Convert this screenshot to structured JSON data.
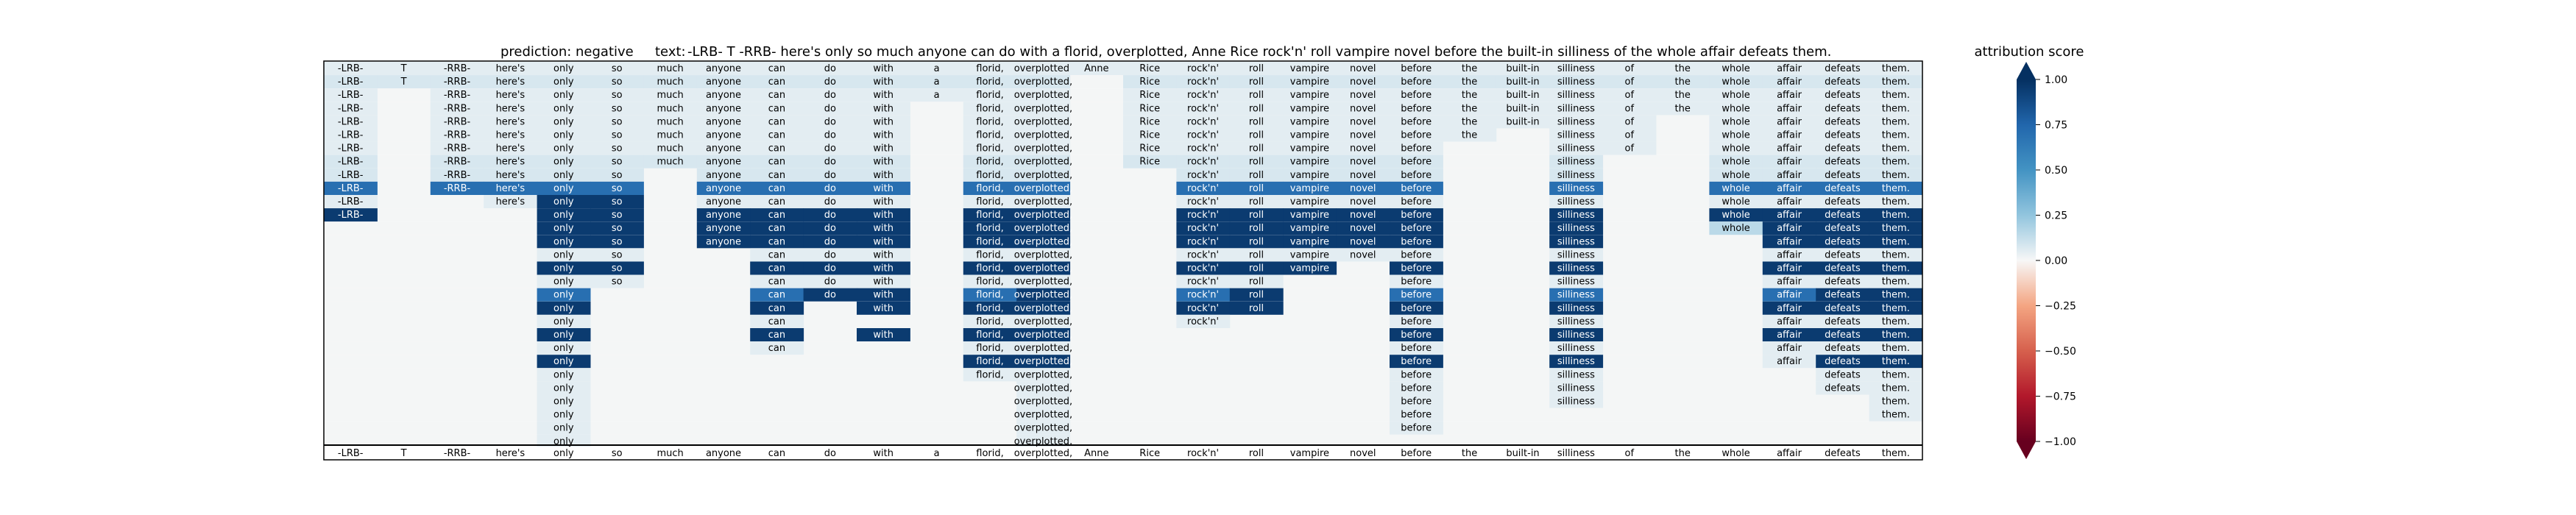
{
  "chart_data": {
    "type": "heatmap",
    "prediction_label": "prediction:",
    "prediction": "negative",
    "text_label": "text:",
    "text": "-LRB- T -RRB- here's only so much anyone can do with a florid, overplotted, Anne Rice rock'n' roll vampire novel before the built-in silliness of the whole affair defeats them.",
    "tokens": [
      "-LRB-",
      "T",
      "-RRB-",
      "here's",
      "only",
      "so",
      "much",
      "anyone",
      "can",
      "do",
      "with",
      "a",
      "florid,",
      "overplotted,",
      "Anne",
      "Rice",
      "rock'n'",
      "roll",
      "vampire",
      "novel",
      "before",
      "the",
      "built-in",
      "silliness",
      "of",
      "the",
      "whole",
      "affair",
      "defeats",
      "them."
    ],
    "colorbar": {
      "title": "attribution score",
      "range": [
        -1.0,
        1.0
      ],
      "ticks": [
        "1.00",
        "0.75",
        "0.50",
        "0.25",
        "0.00",
        "−0.25",
        "−0.50",
        "−0.75",
        "−1.00"
      ],
      "tick_values": [
        1.0,
        0.75,
        0.5,
        0.25,
        0.0,
        -0.25,
        -0.5,
        -0.75,
        -1.0
      ]
    },
    "rows": [
      [
        0.05,
        0.05,
        0.05,
        0.05,
        0.05,
        0.05,
        0.05,
        0.05,
        0.05,
        0.05,
        0.05,
        0.05,
        0.05,
        0.05,
        0.05,
        0.05,
        0.05,
        0.05,
        0.05,
        0.05,
        0.05,
        0.05,
        0.05,
        0.05,
        0.05,
        0.05,
        0.05,
        0.05,
        0.05,
        0.05
      ],
      [
        0.08,
        0.08,
        0.08,
        0.08,
        0.08,
        0.08,
        0.08,
        0.08,
        0.08,
        0.08,
        0.08,
        0.08,
        0.08,
        0.08,
        null,
        0.08,
        0.08,
        0.08,
        0.08,
        0.08,
        0.08,
        0.08,
        0.08,
        0.08,
        0.08,
        0.08,
        0.08,
        0.08,
        0.08,
        0.08
      ],
      [
        0.05,
        null,
        0.05,
        0.05,
        0.05,
        0.05,
        0.05,
        0.05,
        0.05,
        0.05,
        0.05,
        0.05,
        0.05,
        0.05,
        null,
        0.05,
        0.05,
        0.05,
        0.05,
        0.05,
        0.05,
        0.05,
        0.05,
        0.05,
        0.05,
        0.05,
        0.05,
        0.05,
        0.05,
        0.05
      ],
      [
        0.05,
        null,
        0.05,
        0.05,
        0.05,
        0.05,
        0.05,
        0.05,
        0.05,
        0.05,
        0.05,
        null,
        0.05,
        0.05,
        null,
        0.05,
        0.05,
        0.05,
        0.05,
        0.05,
        0.05,
        0.05,
        0.05,
        0.05,
        0.05,
        0.05,
        0.05,
        0.05,
        0.05,
        0.05
      ],
      [
        0.05,
        null,
        0.05,
        0.05,
        0.05,
        0.05,
        0.05,
        0.05,
        0.05,
        0.05,
        0.05,
        null,
        0.05,
        0.05,
        null,
        0.05,
        0.05,
        0.05,
        0.05,
        0.05,
        0.05,
        0.05,
        0.05,
        0.05,
        0.05,
        null,
        0.05,
        0.05,
        0.05,
        0.05
      ],
      [
        0.05,
        null,
        0.05,
        0.05,
        0.05,
        0.05,
        0.05,
        0.05,
        0.05,
        0.05,
        0.05,
        null,
        0.05,
        0.05,
        null,
        0.05,
        0.05,
        0.05,
        0.05,
        0.05,
        0.05,
        0.05,
        null,
        0.05,
        0.05,
        null,
        0.05,
        0.05,
        0.05,
        0.05
      ],
      [
        0.05,
        null,
        0.05,
        0.05,
        0.05,
        0.05,
        0.05,
        0.05,
        0.05,
        0.05,
        0.05,
        null,
        0.05,
        0.05,
        null,
        0.05,
        0.05,
        0.05,
        0.05,
        0.05,
        0.05,
        null,
        null,
        0.05,
        0.05,
        null,
        0.05,
        0.05,
        0.05,
        0.05
      ],
      [
        0.08,
        null,
        0.08,
        0.08,
        0.08,
        0.08,
        0.08,
        0.08,
        0.08,
        0.08,
        0.08,
        null,
        0.08,
        0.08,
        null,
        0.08,
        0.08,
        0.08,
        0.08,
        0.08,
        0.08,
        null,
        null,
        0.08,
        null,
        null,
        0.08,
        0.08,
        0.08,
        0.08
      ],
      [
        0.08,
        null,
        0.08,
        0.08,
        0.08,
        0.08,
        null,
        0.08,
        0.08,
        0.08,
        0.08,
        null,
        0.08,
        0.08,
        null,
        null,
        0.08,
        0.08,
        0.08,
        0.08,
        0.08,
        null,
        null,
        0.08,
        null,
        null,
        0.08,
        0.08,
        0.08,
        0.08
      ],
      [
        0.7,
        null,
        0.7,
        0.7,
        0.7,
        0.7,
        null,
        0.7,
        0.7,
        0.7,
        0.7,
        null,
        0.7,
        0.7,
        null,
        null,
        0.7,
        0.7,
        0.7,
        0.7,
        0.7,
        null,
        null,
        0.7,
        null,
        null,
        0.7,
        0.7,
        0.7,
        0.7
      ],
      [
        0.05,
        null,
        null,
        0.05,
        0.95,
        0.95,
        null,
        0.05,
        0.05,
        0.05,
        0.05,
        null,
        0.05,
        0.05,
        null,
        null,
        0.05,
        0.05,
        0.05,
        0.05,
        0.05,
        null,
        null,
        0.05,
        null,
        null,
        0.05,
        0.05,
        0.05,
        0.05
      ],
      [
        0.95,
        null,
        null,
        null,
        0.95,
        0.95,
        null,
        0.95,
        0.95,
        0.95,
        0.95,
        null,
        0.95,
        0.95,
        null,
        null,
        0.95,
        0.95,
        0.95,
        0.95,
        0.95,
        null,
        null,
        0.95,
        null,
        null,
        0.95,
        0.95,
        0.95,
        0.95
      ],
      [
        null,
        null,
        null,
        null,
        0.95,
        0.95,
        null,
        0.95,
        0.95,
        0.95,
        0.95,
        null,
        0.95,
        0.95,
        null,
        null,
        0.95,
        0.95,
        0.95,
        0.95,
        0.95,
        null,
        null,
        0.95,
        null,
        null,
        0.15,
        0.95,
        0.95,
        0.95
      ],
      [
        null,
        null,
        null,
        null,
        0.95,
        0.95,
        null,
        0.95,
        0.95,
        0.95,
        0.95,
        null,
        0.95,
        0.95,
        null,
        null,
        0.95,
        0.95,
        0.95,
        0.95,
        0.95,
        null,
        null,
        0.95,
        null,
        null,
        null,
        0.95,
        0.95,
        0.95
      ],
      [
        null,
        null,
        null,
        null,
        0.05,
        0.05,
        null,
        null,
        0.05,
        0.05,
        0.05,
        null,
        0.05,
        0.05,
        null,
        null,
        0.05,
        0.05,
        0.05,
        0.05,
        0.05,
        null,
        null,
        0.05,
        null,
        null,
        null,
        0.05,
        0.05,
        0.05
      ],
      [
        null,
        null,
        null,
        null,
        0.95,
        0.95,
        null,
        null,
        0.95,
        0.95,
        0.95,
        null,
        0.95,
        0.95,
        null,
        null,
        0.95,
        0.95,
        0.95,
        null,
        0.95,
        null,
        null,
        0.95,
        null,
        null,
        null,
        0.95,
        0.95,
        0.95
      ],
      [
        null,
        null,
        null,
        null,
        0.05,
        0.05,
        null,
        null,
        0.05,
        0.05,
        0.05,
        null,
        0.05,
        0.05,
        null,
        null,
        0.05,
        0.05,
        null,
        null,
        0.05,
        null,
        null,
        0.05,
        null,
        null,
        null,
        0.05,
        0.05,
        0.05
      ],
      [
        null,
        null,
        null,
        null,
        0.7,
        null,
        null,
        null,
        0.7,
        0.95,
        0.95,
        null,
        0.7,
        0.95,
        null,
        null,
        0.7,
        0.95,
        null,
        null,
        0.7,
        null,
        null,
        0.7,
        null,
        null,
        null,
        0.7,
        0.95,
        0.95
      ],
      [
        null,
        null,
        null,
        null,
        0.95,
        null,
        null,
        null,
        0.95,
        null,
        0.95,
        null,
        0.95,
        0.95,
        null,
        null,
        0.95,
        0.95,
        null,
        null,
        0.95,
        null,
        null,
        0.95,
        null,
        null,
        null,
        0.95,
        0.95,
        0.95
      ],
      [
        null,
        null,
        null,
        null,
        0.05,
        null,
        null,
        null,
        0.05,
        null,
        null,
        null,
        0.05,
        0.05,
        null,
        null,
        0.05,
        null,
        null,
        null,
        0.05,
        null,
        null,
        0.05,
        null,
        null,
        null,
        0.05,
        0.05,
        0.05
      ],
      [
        null,
        null,
        null,
        null,
        0.95,
        null,
        null,
        null,
        0.95,
        null,
        0.95,
        null,
        0.95,
        0.95,
        null,
        null,
        null,
        null,
        null,
        null,
        0.95,
        null,
        null,
        0.95,
        null,
        null,
        null,
        0.95,
        0.95,
        0.95
      ],
      [
        null,
        null,
        null,
        null,
        0.05,
        null,
        null,
        null,
        0.05,
        null,
        null,
        null,
        0.05,
        0.05,
        null,
        null,
        null,
        null,
        null,
        null,
        0.05,
        null,
        null,
        0.05,
        null,
        null,
        null,
        0.05,
        0.05,
        0.05
      ],
      [
        null,
        null,
        null,
        null,
        0.95,
        null,
        null,
        null,
        null,
        null,
        null,
        null,
        0.95,
        0.95,
        null,
        null,
        null,
        null,
        null,
        null,
        0.95,
        null,
        null,
        0.95,
        null,
        null,
        null,
        0.05,
        0.95,
        0.95
      ],
      [
        null,
        null,
        null,
        null,
        0.05,
        null,
        null,
        null,
        null,
        null,
        null,
        null,
        0.05,
        0.05,
        null,
        null,
        null,
        null,
        null,
        null,
        0.05,
        null,
        null,
        0.05,
        null,
        null,
        null,
        null,
        0.05,
        0.05
      ],
      [
        null,
        null,
        null,
        null,
        0.05,
        null,
        null,
        null,
        null,
        null,
        null,
        null,
        null,
        0.05,
        null,
        null,
        null,
        null,
        null,
        null,
        0.05,
        null,
        null,
        0.05,
        null,
        null,
        null,
        null,
        0.05,
        0.05
      ],
      [
        null,
        null,
        null,
        null,
        0.05,
        null,
        null,
        null,
        null,
        null,
        null,
        null,
        null,
        0.05,
        null,
        null,
        null,
        null,
        null,
        null,
        0.05,
        null,
        null,
        0.05,
        null,
        null,
        null,
        null,
        null,
        0.05
      ],
      [
        null,
        null,
        null,
        null,
        0.05,
        null,
        null,
        null,
        null,
        null,
        null,
        null,
        null,
        0.05,
        null,
        null,
        null,
        null,
        null,
        null,
        0.05,
        null,
        null,
        null,
        null,
        null,
        null,
        null,
        null,
        0.05
      ],
      [
        null,
        null,
        null,
        null,
        0.05,
        null,
        null,
        null,
        null,
        null,
        null,
        null,
        null,
        0.05,
        null,
        null,
        null,
        null,
        null,
        null,
        0.05,
        null,
        null,
        null,
        null,
        null,
        null,
        null,
        null,
        null
      ],
      [
        null,
        null,
        null,
        null,
        0.05,
        null,
        null,
        null,
        null,
        null,
        null,
        null,
        null,
        0.05,
        null,
        null,
        null,
        null,
        null,
        null,
        null,
        null,
        null,
        null,
        null,
        null,
        null,
        null,
        null,
        null
      ]
    ]
  }
}
